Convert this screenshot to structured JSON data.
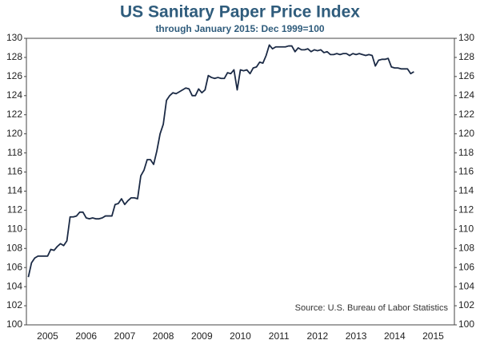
{
  "chart_data": {
    "type": "line",
    "title": "US Sanitary Paper Price Index",
    "subtitle": "through January 2015: Dec 1999=100",
    "annotation": "Source: U.S. Bureau of Labor Statistics",
    "x": [
      2005,
      2005.083,
      2005.167,
      2005.25,
      2005.333,
      2005.417,
      2005.5,
      2005.583,
      2005.667,
      2005.75,
      2005.833,
      2005.917,
      2006,
      2006.083,
      2006.167,
      2006.25,
      2006.333,
      2006.417,
      2006.5,
      2006.583,
      2006.667,
      2006.75,
      2006.833,
      2006.917,
      2007,
      2007.083,
      2007.167,
      2007.25,
      2007.333,
      2007.417,
      2007.5,
      2007.583,
      2007.667,
      2007.75,
      2007.833,
      2007.917,
      2008,
      2008.083,
      2008.167,
      2008.25,
      2008.333,
      2008.417,
      2008.5,
      2008.583,
      2008.667,
      2008.75,
      2008.833,
      2008.917,
      2009,
      2009.083,
      2009.167,
      2009.25,
      2009.333,
      2009.417,
      2009.5,
      2009.583,
      2009.667,
      2009.75,
      2009.833,
      2009.917,
      2010,
      2010.083,
      2010.167,
      2010.25,
      2010.333,
      2010.417,
      2010.5,
      2010.583,
      2010.667,
      2010.75,
      2010.833,
      2010.917,
      2011,
      2011.083,
      2011.167,
      2011.25,
      2011.333,
      2011.417,
      2011.5,
      2011.583,
      2011.667,
      2011.75,
      2011.833,
      2011.917,
      2012,
      2012.083,
      2012.167,
      2012.25,
      2012.333,
      2012.417,
      2012.5,
      2012.583,
      2012.667,
      2012.75,
      2012.833,
      2012.917,
      2013,
      2013.083,
      2013.167,
      2013.25,
      2013.333,
      2013.417,
      2013.5,
      2013.583,
      2013.667,
      2013.75,
      2013.833,
      2013.917,
      2014,
      2014.083,
      2014.167,
      2014.25,
      2014.333,
      2014.417,
      2014.5,
      2014.583,
      2014.667,
      2014.75,
      2014.833,
      2014.917,
      2015
    ],
    "series": [
      {
        "name": "Sanitary Paper Price Index",
        "color": "#1b2a45",
        "values": [
          105.0,
          106.5,
          107.0,
          107.2,
          107.2,
          107.2,
          107.2,
          107.9,
          107.8,
          108.2,
          108.5,
          108.3,
          108.8,
          111.3,
          111.3,
          111.4,
          111.8,
          111.8,
          111.2,
          111.1,
          111.2,
          111.1,
          111.1,
          111.2,
          111.4,
          111.4,
          111.4,
          112.6,
          112.7,
          113.2,
          112.6,
          113.0,
          113.3,
          113.3,
          113.2,
          115.6,
          116.2,
          117.3,
          117.3,
          116.8,
          118.2,
          120.0,
          121.0,
          123.5,
          124.0,
          124.3,
          124.2,
          124.4,
          124.6,
          124.8,
          124.7,
          124.0,
          124.0,
          124.7,
          124.3,
          124.6,
          126.1,
          125.9,
          125.8,
          125.9,
          125.8,
          125.8,
          126.4,
          126.3,
          126.7,
          124.6,
          126.7,
          126.6,
          126.7,
          126.3,
          126.9,
          127.0,
          127.5,
          127.4,
          128.2,
          129.3,
          128.9,
          129.1,
          129.1,
          129.1,
          129.1,
          129.2,
          129.2,
          128.6,
          129.0,
          128.8,
          128.8,
          128.9,
          128.6,
          128.8,
          128.7,
          128.8,
          128.5,
          128.6,
          128.3,
          128.3,
          128.4,
          128.3,
          128.4,
          128.4,
          128.2,
          128.4,
          128.3,
          128.4,
          128.3,
          128.2,
          128.3,
          128.2,
          127.1,
          127.7,
          127.8,
          127.8,
          127.9,
          127.0,
          126.9,
          126.9,
          126.8,
          126.8,
          126.8,
          126.3,
          126.5
        ]
      }
    ],
    "xlim": [
      2004.95,
      2016.05
    ],
    "xticks": [
      {
        "value": 2005.5,
        "label": "2005"
      },
      {
        "value": 2006.5,
        "label": "2006"
      },
      {
        "value": 2007.5,
        "label": "2007"
      },
      {
        "value": 2008.5,
        "label": "2008"
      },
      {
        "value": 2009.5,
        "label": "2009"
      },
      {
        "value": 2010.5,
        "label": "2010"
      },
      {
        "value": 2011.5,
        "label": "2011"
      },
      {
        "value": 2012.5,
        "label": "2012"
      },
      {
        "value": 2013.5,
        "label": "2013"
      },
      {
        "value": 2014.5,
        "label": "2014"
      },
      {
        "value": 2015.5,
        "label": "2015"
      }
    ],
    "ylim": [
      100,
      130
    ],
    "yticks": [
      100,
      102,
      104,
      106,
      108,
      110,
      112,
      114,
      116,
      118,
      120,
      122,
      124,
      126,
      128,
      130
    ],
    "grid": false
  }
}
